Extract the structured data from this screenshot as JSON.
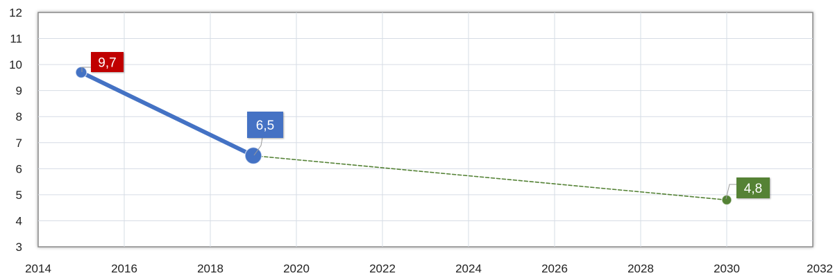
{
  "chart_data": {
    "type": "scatter",
    "title": "",
    "xlabel": "",
    "ylabel": "",
    "xlim": [
      2014,
      2032
    ],
    "ylim": [
      3,
      12
    ],
    "x_ticks": [
      2014,
      2016,
      2018,
      2020,
      2022,
      2024,
      2026,
      2028,
      2030,
      2032
    ],
    "y_ticks": [
      3,
      4,
      5,
      6,
      7,
      8,
      9,
      10,
      11,
      12
    ],
    "grid": true,
    "legend": "none",
    "series": [
      {
        "points": [
          {
            "x": 2015,
            "y": 9.7
          },
          {
            "x": 2019,
            "y": 6.5
          }
        ],
        "line_style": "solid",
        "color": "#4472C4"
      },
      {
        "points": [
          {
            "x": 2019,
            "y": 6.5
          },
          {
            "x": 2030,
            "y": 4.8
          }
        ],
        "line_style": "dashed",
        "color": "#548235"
      }
    ],
    "data_labels": [
      {
        "x": 2015,
        "y": 9.7,
        "text": "9,7",
        "color": "#C00000"
      },
      {
        "x": 2019,
        "y": 6.5,
        "text": "6,5",
        "color": "#4472C4"
      },
      {
        "x": 2030,
        "y": 4.8,
        "text": "4,8",
        "color": "#548235"
      }
    ],
    "colors": {
      "plot_border": "#888888",
      "grid": "#D6DCE5",
      "blue": "#4472C4",
      "green": "#548235",
      "red": "#C00000"
    }
  }
}
